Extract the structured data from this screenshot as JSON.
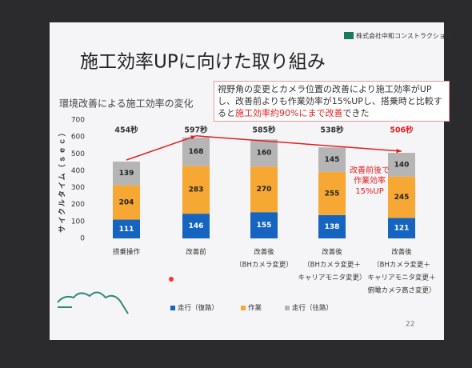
{
  "company": "株式会社中和コンストラクション",
  "page_number": "22",
  "chart_data": {
    "type": "stacked_bar",
    "title": "施工効率UPに向けた取り組み",
    "subtitle": "環境改善による施工効率の変化",
    "y_label": "サイクルタイム（ｓｅｃ）",
    "annotation_box": [
      "視野角の変更とカメラ位置の改善により施工効率がUPし、改善前よりも作業効率が15%UPし、搭乗時と比較すると",
      "施工効率約90%にまで改善",
      "できた"
    ],
    "annotation": [
      "改善前後で",
      "作業効率",
      "15%UP"
    ],
    "categories": [
      [
        "搭乗操作"
      ],
      [
        "改善前"
      ],
      [
        "改善後",
        "（BHカメラ変更）"
      ],
      [
        "改善後",
        "（BHカメラ変更＋",
        "キャリアモニタ変更）"
      ],
      [
        "改善後",
        "（BHカメラ変更＋",
        "キャリアモニタ変更＋",
        "俯瞰カメラ高さ変更）"
      ]
    ],
    "series": [
      {
        "name": "走行（復路）",
        "color": "#1565c0",
        "label_color": "#ffffff",
        "values": [
          111,
          146,
          155,
          138,
          121
        ]
      },
      {
        "name": "作業",
        "color": "#f7a733",
        "label_color": "#222222",
        "values": [
          204,
          283,
          270,
          255,
          245
        ]
      },
      {
        "name": "走行（往路）",
        "color": "#b5b5b5",
        "label_color": "#222222",
        "values": [
          139,
          168,
          160,
          145,
          140
        ]
      }
    ],
    "totals": {
      "values": [
        454,
        597,
        585,
        538,
        506
      ],
      "value_labels": [
        "454秒",
        "597秒",
        "585秒",
        "538秒",
        "506秒"
      ],
      "colors": [
        "#333333",
        "#333333",
        "#333333",
        "#333333",
        "#e02020"
      ]
    },
    "ylim": [
      0,
      700
    ],
    "yticks": [
      0,
      100,
      200,
      300,
      400,
      500,
      600,
      700
    ],
    "grid": false,
    "accent_color": "#e02020"
  }
}
